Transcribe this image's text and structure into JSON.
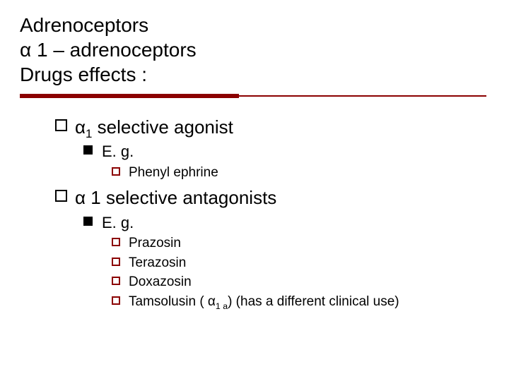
{
  "colors": {
    "rule": "#8b0000",
    "text": "#000000",
    "background": "#ffffff",
    "marker_open": "#000000",
    "marker_fill": "#000000",
    "marker_open_red": "#8b0000"
  },
  "typography": {
    "family": "Verdana",
    "title_fontsize_pt": 22,
    "lvl1_fontsize_pt": 20,
    "lvl2_fontsize_pt": 17,
    "lvl3_fontsize_pt": 15
  },
  "title": {
    "line1": "Adrenoceptors",
    "line2": "α 1 – adrenoceptors",
    "line3": "Drugs effects :"
  },
  "items": {
    "agonist": {
      "label_pre": "α",
      "label_sub": "1",
      "label_post": " selective agonist",
      "eg_label": "E. g.",
      "examples": {
        "phenylephrine": "Phenyl ephrine"
      }
    },
    "antagonist": {
      "label": "α 1 selective antagonists",
      "eg_label": "E. g.",
      "examples": {
        "prazosin": " Prazosin",
        "terazosin": " Terazosin",
        "doxazosin": " Doxazosin",
        "tamsulosin_pre": " Tamsolusin ( α",
        "tamsulosin_sub": "1 a",
        "tamsulosin_post": ") (has  a different clinical use)"
      }
    }
  }
}
